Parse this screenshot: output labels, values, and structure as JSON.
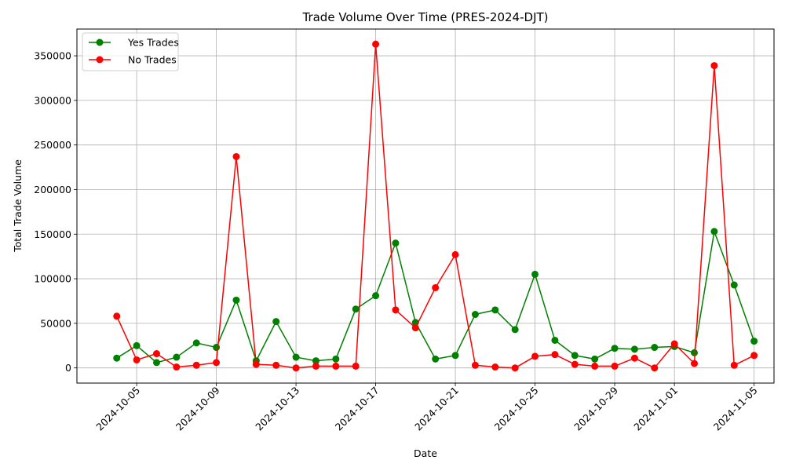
{
  "chart_data": {
    "type": "line",
    "title": "Trade Volume Over Time (PRES-2024-DJT)",
    "xlabel": "Date",
    "ylabel": "Total Trade Volume",
    "grid": true,
    "legend_position": "top-left",
    "x": [
      "2024-10-04",
      "2024-10-05",
      "2024-10-06",
      "2024-10-07",
      "2024-10-08",
      "2024-10-09",
      "2024-10-10",
      "2024-10-11",
      "2024-10-12",
      "2024-10-13",
      "2024-10-14",
      "2024-10-15",
      "2024-10-16",
      "2024-10-17",
      "2024-10-18",
      "2024-10-19",
      "2024-10-20",
      "2024-10-21",
      "2024-10-22",
      "2024-10-23",
      "2024-10-24",
      "2024-10-25",
      "2024-10-26",
      "2024-10-27",
      "2024-10-28",
      "2024-10-29",
      "2024-10-30",
      "2024-10-31",
      "2024-11-01",
      "2024-11-02",
      "2024-11-03",
      "2024-11-04",
      "2024-11-05"
    ],
    "xlim": [
      "2024-10-02",
      "2024-11-06"
    ],
    "x_ticks": [
      "2024-10-05",
      "2024-10-09",
      "2024-10-13",
      "2024-10-17",
      "2024-10-21",
      "2024-10-25",
      "2024-10-29",
      "2024-11-01",
      "2024-11-05"
    ],
    "ylim": [
      -17000,
      380000
    ],
    "y_ticks": [
      0,
      50000,
      100000,
      150000,
      200000,
      250000,
      300000,
      350000
    ],
    "series": [
      {
        "name": "Yes Trades",
        "color": "#008000",
        "values": [
          11000,
          25000,
          6000,
          12000,
          28000,
          23000,
          76000,
          8000,
          52000,
          12000,
          8000,
          10000,
          66000,
          81000,
          140000,
          51000,
          10000,
          14000,
          60000,
          65000,
          43000,
          105000,
          31000,
          14000,
          10000,
          22000,
          21000,
          23000,
          24000,
          17000,
          153000,
          93000,
          30000
        ]
      },
      {
        "name": "No Trades",
        "color": "#ff0000",
        "values": [
          58000,
          9000,
          16000,
          1000,
          3000,
          6000,
          237000,
          4000,
          3000,
          0,
          2000,
          2000,
          2000,
          363000,
          65000,
          45000,
          90000,
          127000,
          3000,
          1000,
          0,
          13000,
          15000,
          4000,
          2000,
          2000,
          11000,
          0,
          27000,
          5000,
          339000,
          3000,
          14000
        ]
      }
    ]
  }
}
